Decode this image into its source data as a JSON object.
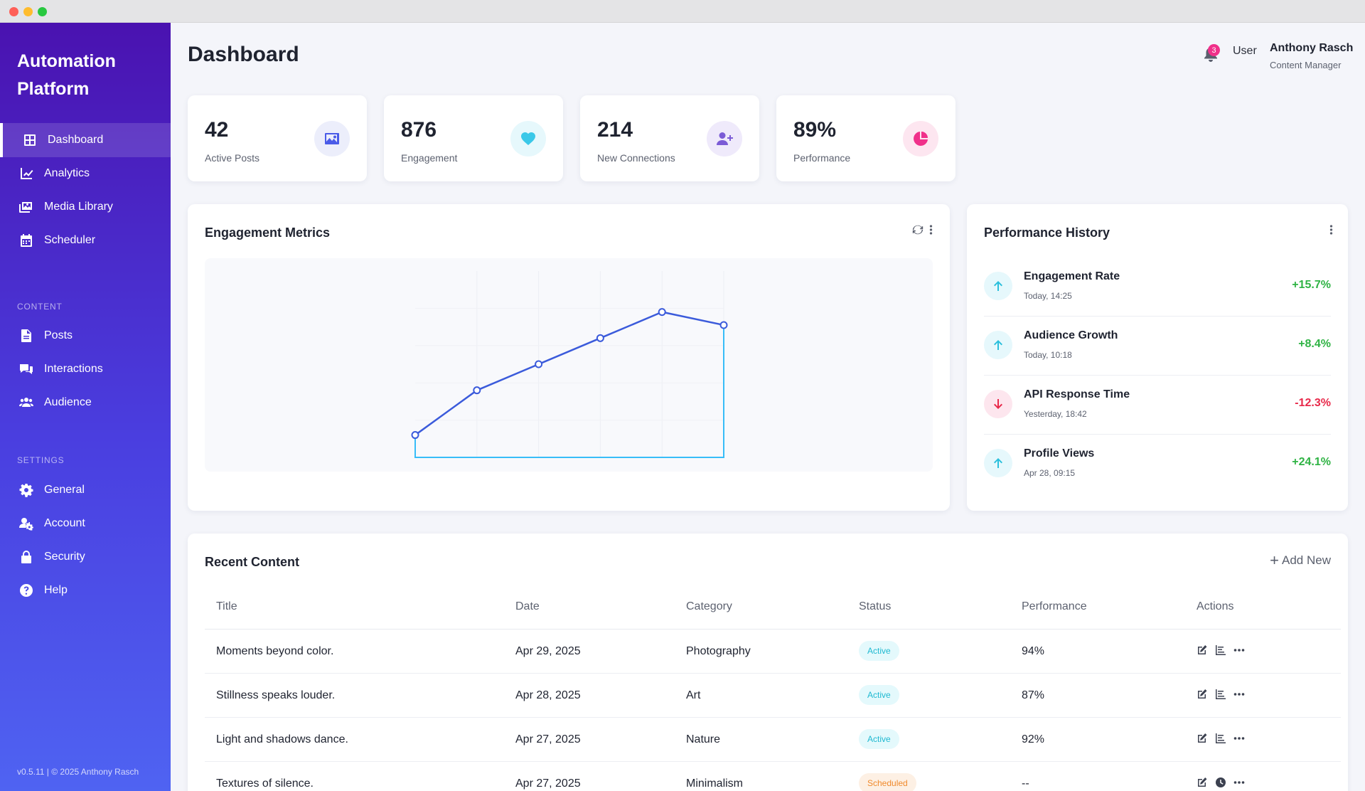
{
  "sidebar": {
    "brand": "Automation Platform",
    "main_items": [
      {
        "label": "Dashboard",
        "icon": "grid-icon",
        "active": true
      },
      {
        "label": "Analytics",
        "icon": "chart-line-icon"
      },
      {
        "label": "Media Library",
        "icon": "images-icon"
      },
      {
        "label": "Scheduler",
        "icon": "calendar-icon"
      }
    ],
    "content_section": "CONTENT",
    "content_items": [
      {
        "label": "Posts",
        "icon": "file-icon"
      },
      {
        "label": "Interactions",
        "icon": "comments-icon"
      },
      {
        "label": "Audience",
        "icon": "users-icon"
      }
    ],
    "settings_section": "SETTINGS",
    "settings_items": [
      {
        "label": "General",
        "icon": "gear-icon"
      },
      {
        "label": "Account",
        "icon": "user-cog-icon"
      },
      {
        "label": "Security",
        "icon": "lock-icon"
      },
      {
        "label": "Help",
        "icon": "question-circle-icon"
      }
    ],
    "version": "v0.5.11 | © 2025 Anthony Rasch"
  },
  "header": {
    "title": "Dashboard",
    "notification_count": "3",
    "user_tag": "User",
    "user_name": "Anthony Rasch",
    "user_role": "Content Manager"
  },
  "stats": [
    {
      "value": "42",
      "label": "Active Posts",
      "icon": "image-icon",
      "icon_color": "#4a5be8",
      "bg": "#eceefb"
    },
    {
      "value": "876",
      "label": "Engagement",
      "icon": "heart-icon",
      "icon_color": "#3ac8e8",
      "bg": "#e6f8fc"
    },
    {
      "value": "214",
      "label": "New Connections",
      "icon": "user-plus-icon",
      "icon_color": "#7b5bd6",
      "bg": "#efeafb"
    },
    {
      "value": "89%",
      "label": "Performance",
      "icon": "pie-chart-icon",
      "icon_color": "#f0308a",
      "bg": "#fde6f0"
    }
  ],
  "engagement": {
    "title": "Engagement Metrics",
    "line_color": "#3b5bdb",
    "area_color": "#38bdf8"
  },
  "chart_data": {
    "type": "area",
    "title": "Engagement Metrics",
    "x": [
      1,
      2,
      3,
      4,
      5,
      6
    ],
    "series": [
      {
        "values": [
          12,
          36,
          50,
          64,
          78,
          71
        ]
      }
    ],
    "ylim": [
      0,
      100
    ],
    "grid": true,
    "legend": "none"
  },
  "history": {
    "title": "Performance History",
    "items": [
      {
        "title": "Engagement Rate",
        "time": "Today, 14:25",
        "change": "+15.7%",
        "direction": "up"
      },
      {
        "title": "Audience Growth",
        "time": "Today, 10:18",
        "change": "+8.4%",
        "direction": "up"
      },
      {
        "title": "API Response Time",
        "time": "Yesterday, 18:42",
        "change": "-12.3%",
        "direction": "down"
      },
      {
        "title": "Profile Views",
        "time": "Apr 28, 09:15",
        "change": "+24.1%",
        "direction": "up"
      }
    ],
    "up_color": "#2fb344",
    "down_color": "#e8294a"
  },
  "recent": {
    "title": "Recent Content",
    "add_new": "Add New",
    "columns": [
      "Title",
      "Date",
      "Category",
      "Status",
      "Performance",
      "Actions"
    ],
    "rows": [
      {
        "title": "Moments beyond color.",
        "date": "Apr 29, 2025",
        "category": "Photography",
        "status": "Active",
        "performance": "94%"
      },
      {
        "title": "Stillness speaks louder.",
        "date": "Apr 28, 2025",
        "category": "Art",
        "status": "Active",
        "performance": "87%"
      },
      {
        "title": "Light and shadows dance.",
        "date": "Apr 27, 2025",
        "category": "Nature",
        "status": "Active",
        "performance": "92%"
      },
      {
        "title": "Textures of silence.",
        "date": "Apr 27, 2025",
        "category": "Minimalism",
        "status": "Scheduled",
        "performance": "--"
      }
    ]
  }
}
